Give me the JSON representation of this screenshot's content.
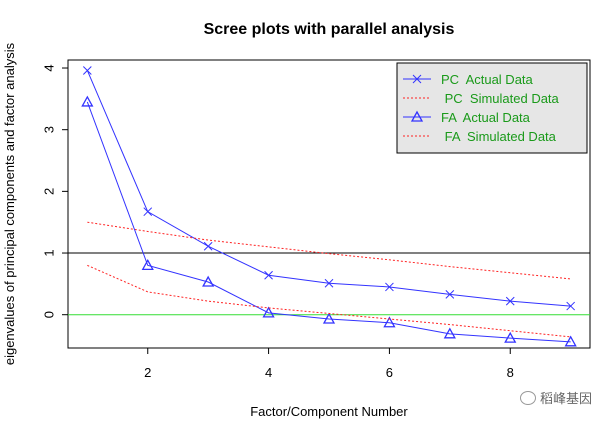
{
  "chart_data": {
    "type": "line",
    "title": "Scree plots with parallel analysis",
    "xlabel": "Factor/Component Number",
    "ylabel": "eigenvalues of principal components and factor analysis",
    "xlim": [
      0.68,
      9.32
    ],
    "ylim": [
      -0.54,
      4.13
    ],
    "xticks": [
      2,
      4,
      6,
      8
    ],
    "yticks": [
      0,
      1,
      2,
      3,
      4
    ],
    "x": [
      1,
      2,
      3,
      4,
      5,
      6,
      7,
      8,
      9
    ],
    "hlines": [
      {
        "y": 1,
        "color": "#000000"
      },
      {
        "y": 0,
        "color": "#33dd33"
      }
    ],
    "legend_position": "top-right",
    "series": [
      {
        "name": "PC  Actual Data",
        "marker": "x",
        "style": "solid",
        "color": "#3333ff",
        "values": [
          3.96,
          1.67,
          1.11,
          0.64,
          0.51,
          0.45,
          0.33,
          0.22,
          0.14
        ]
      },
      {
        "name": " PC  Simulated Data",
        "marker": "none",
        "style": "dotted",
        "color": "#ff2222",
        "values": [
          1.5,
          1.35,
          1.21,
          1.1,
          0.99,
          0.89,
          0.78,
          0.68,
          0.58
        ]
      },
      {
        "name": "FA  Actual Data",
        "marker": "triangle",
        "style": "solid",
        "color": "#3333ff",
        "values": [
          3.45,
          0.8,
          0.53,
          0.03,
          -0.07,
          -0.13,
          -0.31,
          -0.38,
          -0.44
        ]
      },
      {
        "name": " FA  Simulated Data",
        "marker": "none",
        "style": "dotted",
        "color": "#ff2222",
        "values": [
          0.8,
          0.37,
          0.22,
          0.11,
          0.02,
          -0.07,
          -0.16,
          -0.26,
          -0.36
        ]
      }
    ],
    "legend_text_color": "#1a9a1a"
  },
  "watermark": "稻峰基因"
}
